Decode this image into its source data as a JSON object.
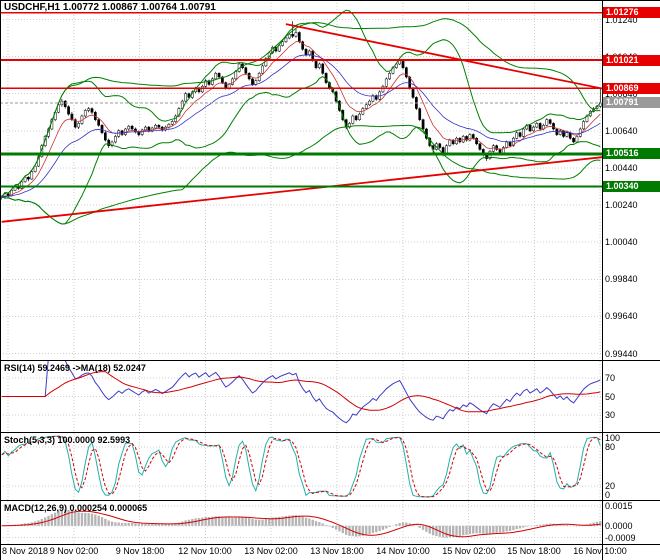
{
  "title": "USDCHF,H1 1.00772 1.00867 1.00764 1.00791",
  "colors": {
    "background": "#ffffff",
    "grid": "#cfcfcf",
    "candle": "#000000",
    "band_green": "#008000",
    "level_red": "#e60000",
    "level_green": "#007a00",
    "current_price_badge": "#9a9a9a",
    "rsi_line": "#3c3cc8",
    "rsi_signal": "#d40000",
    "stoch_main": "#20b2aa",
    "stoch_signal": "#d40000",
    "macd_hist": "#b4b4b4",
    "macd_signal": "#d40000",
    "ma_fast": "#c83232",
    "ma_slow": "#3232c8"
  },
  "chart_data": {
    "type": "candlestick",
    "instrument": "USDCHF",
    "timeframe": "H1",
    "ohlc_header": {
      "open": "1.00772",
      "high": "1.00867",
      "low": "1.00764",
      "close": "1.00791"
    },
    "x_tick_labels": [
      "8 Nov 2018",
      "9 Nov 02:00",
      "9 Nov 18:00",
      "12 Nov 10:00",
      "13 Nov 02:00",
      "13 Nov 18:00",
      "14 Nov 10:00",
      "15 Nov 02:00",
      "15 Nov 18:00",
      "16 Nov 10:00"
    ],
    "y_axis": {
      "tick_labels": [
        "1.01240",
        "1.01040",
        "1.00840",
        "1.00640",
        "1.00440",
        "1.00240",
        "1.00040",
        "0.99840",
        "0.99640",
        "0.99440"
      ],
      "plot_max": 1.01345,
      "plot_min": 0.99405
    },
    "price_base": 0.99,
    "point": 1e-05,
    "candles": [
      [
        1280,
        1292,
        1270,
        1285
      ],
      [
        1285,
        1308,
        1280,
        1300
      ],
      [
        1300,
        1306,
        1282,
        1290
      ],
      [
        1290,
        1328,
        1286,
        1320
      ],
      [
        1320,
        1348,
        1315,
        1340
      ],
      [
        1340,
        1352,
        1322,
        1330
      ],
      [
        1330,
        1372,
        1326,
        1365
      ],
      [
        1365,
        1398,
        1360,
        1390
      ],
      [
        1390,
        1396,
        1368,
        1380
      ],
      [
        1380,
        1428,
        1376,
        1420
      ],
      [
        1420,
        1458,
        1415,
        1450
      ],
      [
        1450,
        1510,
        1445,
        1500
      ],
      [
        1500,
        1568,
        1495,
        1560
      ],
      [
        1560,
        1618,
        1552,
        1610
      ],
      [
        1610,
        1658,
        1600,
        1650
      ],
      [
        1650,
        1708,
        1645,
        1700
      ],
      [
        1700,
        1748,
        1692,
        1740
      ],
      [
        1740,
        1788,
        1735,
        1780
      ],
      [
        1780,
        1812,
        1770,
        1800
      ],
      [
        1800,
        1806,
        1760,
        1770
      ],
      [
        1770,
        1778,
        1722,
        1730
      ],
      [
        1730,
        1742,
        1692,
        1700
      ],
      [
        1700,
        1708,
        1652,
        1660
      ],
      [
        1660,
        1688,
        1650,
        1680
      ],
      [
        1680,
        1728,
        1672,
        1720
      ],
      [
        1720,
        1758,
        1712,
        1750
      ],
      [
        1750,
        1768,
        1740,
        1760
      ],
      [
        1760,
        1766,
        1730,
        1740
      ],
      [
        1740,
        1748,
        1692,
        1700
      ],
      [
        1700,
        1706,
        1662,
        1670
      ],
      [
        1670,
        1676,
        1622,
        1630
      ],
      [
        1630,
        1638,
        1582,
        1590
      ],
      [
        1590,
        1598,
        1548,
        1560
      ],
      [
        1560,
        1588,
        1552,
        1580
      ],
      [
        1580,
        1618,
        1572,
        1610
      ],
      [
        1610,
        1648,
        1602,
        1640
      ],
      [
        1640,
        1646,
        1612,
        1620
      ],
      [
        1620,
        1656,
        1612,
        1650
      ],
      [
        1650,
        1672,
        1642,
        1665
      ],
      [
        1665,
        1672,
        1640,
        1650
      ],
      [
        1650,
        1658,
        1626,
        1635
      ],
      [
        1635,
        1642,
        1610,
        1620
      ],
      [
        1620,
        1652,
        1612,
        1645
      ],
      [
        1645,
        1668,
        1638,
        1660
      ],
      [
        1660,
        1666,
        1632,
        1640
      ],
      [
        1640,
        1662,
        1632,
        1655
      ],
      [
        1655,
        1678,
        1648,
        1670
      ],
      [
        1670,
        1676,
        1650,
        1660
      ],
      [
        1660,
        1666,
        1636,
        1645
      ],
      [
        1645,
        1668,
        1638,
        1660
      ],
      [
        1660,
        1682,
        1652,
        1675
      ],
      [
        1675,
        1698,
        1668,
        1690
      ],
      [
        1690,
        1728,
        1684,
        1720
      ],
      [
        1720,
        1768,
        1714,
        1760
      ],
      [
        1760,
        1808,
        1754,
        1800
      ],
      [
        1800,
        1848,
        1794,
        1840
      ],
      [
        1840,
        1846,
        1812,
        1820
      ],
      [
        1820,
        1858,
        1812,
        1850
      ],
      [
        1850,
        1878,
        1842,
        1870
      ],
      [
        1870,
        1876,
        1842,
        1850
      ],
      [
        1850,
        1888,
        1844,
        1880
      ],
      [
        1880,
        1918,
        1874,
        1910
      ],
      [
        1910,
        1916,
        1882,
        1890
      ],
      [
        1890,
        1928,
        1884,
        1920
      ],
      [
        1920,
        1958,
        1914,
        1950
      ],
      [
        1950,
        1956,
        1922,
        1930
      ],
      [
        1930,
        1936,
        1892,
        1900
      ],
      [
        1900,
        1906,
        1862,
        1870
      ],
      [
        1870,
        1898,
        1862,
        1890
      ],
      [
        1890,
        1928,
        1884,
        1920
      ],
      [
        1920,
        1968,
        1914,
        1960
      ],
      [
        1960,
        2008,
        1954,
        2000
      ],
      [
        2000,
        2006,
        1972,
        1980
      ],
      [
        1980,
        1986,
        1942,
        1950
      ],
      [
        1950,
        1956,
        1912,
        1920
      ],
      [
        1920,
        1926,
        1882,
        1890
      ],
      [
        1890,
        1918,
        1882,
        1910
      ],
      [
        1910,
        1958,
        1904,
        1950
      ],
      [
        1950,
        1998,
        1944,
        1990
      ],
      [
        1990,
        2038,
        1984,
        2030
      ],
      [
        2030,
        2068,
        2024,
        2060
      ],
      [
        2060,
        2098,
        2054,
        2090
      ],
      [
        2090,
        2096,
        2062,
        2070
      ],
      [
        2070,
        2108,
        2064,
        2100
      ],
      [
        2100,
        2128,
        2094,
        2120
      ],
      [
        2120,
        2148,
        2114,
        2140
      ],
      [
        2140,
        2168,
        2134,
        2160
      ],
      [
        2160,
        2230,
        2140,
        2150
      ],
      [
        2150,
        2188,
        2142,
        2170
      ],
      [
        2170,
        2176,
        2112,
        2120
      ],
      [
        2120,
        2126,
        2072,
        2080
      ],
      [
        2080,
        2086,
        2042,
        2050
      ],
      [
        2050,
        2078,
        2042,
        2070
      ],
      [
        2070,
        2076,
        2012,
        2020
      ],
      [
        2020,
        2026,
        1972,
        1980
      ],
      [
        1980,
        2008,
        1972,
        2000
      ],
      [
        2000,
        2006,
        1942,
        1950
      ],
      [
        1950,
        1956,
        1892,
        1900
      ],
      [
        1900,
        1906,
        1862,
        1870
      ],
      [
        1870,
        1876,
        1842,
        1850
      ],
      [
        1850,
        1856,
        1792,
        1800
      ],
      [
        1800,
        1806,
        1742,
        1750
      ],
      [
        1750,
        1756,
        1692,
        1700
      ],
      [
        1700,
        1706,
        1648,
        1660
      ],
      [
        1660,
        1688,
        1652,
        1680
      ],
      [
        1680,
        1728,
        1674,
        1720
      ],
      [
        1720,
        1726,
        1692,
        1700
      ],
      [
        1700,
        1738,
        1694,
        1730
      ],
      [
        1730,
        1768,
        1724,
        1760
      ],
      [
        1760,
        1788,
        1754,
        1780
      ],
      [
        1780,
        1808,
        1774,
        1800
      ],
      [
        1800,
        1838,
        1794,
        1830
      ],
      [
        1830,
        1836,
        1802,
        1810
      ],
      [
        1810,
        1858,
        1804,
        1850
      ],
      [
        1850,
        1888,
        1844,
        1880
      ],
      [
        1880,
        1928,
        1874,
        1920
      ],
      [
        1920,
        1958,
        1914,
        1950
      ],
      [
        1950,
        1988,
        1944,
        1980
      ],
      [
        1980,
        2008,
        1974,
        2000
      ],
      [
        2000,
        2028,
        1994,
        2020
      ],
      [
        2020,
        2026,
        1972,
        1980
      ],
      [
        1980,
        1986,
        1922,
        1930
      ],
      [
        1930,
        1936,
        1862,
        1870
      ],
      [
        1870,
        1876,
        1812,
        1820
      ],
      [
        1820,
        1826,
        1752,
        1760
      ],
      [
        1760,
        1766,
        1692,
        1700
      ],
      [
        1700,
        1706,
        1642,
        1650
      ],
      [
        1650,
        1656,
        1592,
        1600
      ],
      [
        1600,
        1606,
        1552,
        1560
      ],
      [
        1560,
        1566,
        1522,
        1540
      ],
      [
        1540,
        1578,
        1534,
        1570
      ],
      [
        1570,
        1576,
        1542,
        1550
      ],
      [
        1550,
        1556,
        1502,
        1520
      ],
      [
        1520,
        1568,
        1514,
        1560
      ],
      [
        1560,
        1598,
        1554,
        1590
      ],
      [
        1590,
        1596,
        1562,
        1570
      ],
      [
        1570,
        1608,
        1564,
        1600
      ],
      [
        1600,
        1606,
        1572,
        1580
      ],
      [
        1580,
        1618,
        1574,
        1610
      ],
      [
        1610,
        1616,
        1582,
        1590
      ],
      [
        1590,
        1628,
        1584,
        1620
      ],
      [
        1620,
        1626,
        1592,
        1600
      ],
      [
        1600,
        1606,
        1562,
        1570
      ],
      [
        1570,
        1576,
        1532,
        1540
      ],
      [
        1540,
        1546,
        1502,
        1510
      ],
      [
        1510,
        1516,
        1478,
        1490
      ],
      [
        1490,
        1538,
        1484,
        1530
      ],
      [
        1530,
        1568,
        1524,
        1560
      ],
      [
        1560,
        1566,
        1532,
        1540
      ],
      [
        1540,
        1546,
        1512,
        1520
      ],
      [
        1520,
        1558,
        1514,
        1550
      ],
      [
        1550,
        1588,
        1544,
        1580
      ],
      [
        1580,
        1586,
        1552,
        1560
      ],
      [
        1560,
        1608,
        1554,
        1600
      ],
      [
        1600,
        1638,
        1594,
        1630
      ],
      [
        1630,
        1636,
        1602,
        1610
      ],
      [
        1610,
        1658,
        1604,
        1650
      ],
      [
        1650,
        1678,
        1644,
        1670
      ],
      [
        1670,
        1676,
        1632,
        1640
      ],
      [
        1640,
        1668,
        1634,
        1660
      ],
      [
        1660,
        1688,
        1654,
        1680
      ],
      [
        1680,
        1686,
        1642,
        1650
      ],
      [
        1650,
        1678,
        1644,
        1670
      ],
      [
        1670,
        1708,
        1664,
        1700
      ],
      [
        1700,
        1706,
        1672,
        1680
      ],
      [
        1680,
        1686,
        1642,
        1650
      ],
      [
        1650,
        1656,
        1612,
        1620
      ],
      [
        1620,
        1648,
        1614,
        1640
      ],
      [
        1640,
        1646,
        1602,
        1610
      ],
      [
        1610,
        1638,
        1604,
        1630
      ],
      [
        1630,
        1636,
        1592,
        1600
      ],
      [
        1600,
        1606,
        1572,
        1580
      ],
      [
        1580,
        1618,
        1574,
        1610
      ],
      [
        1610,
        1658,
        1604,
        1650
      ],
      [
        1650,
        1698,
        1644,
        1690
      ],
      [
        1690,
        1728,
        1684,
        1720
      ],
      [
        1720,
        1753,
        1714,
        1745
      ],
      [
        1745,
        1768,
        1739,
        1760
      ],
      [
        1760,
        1779,
        1754,
        1772
      ],
      [
        1772,
        1867,
        1764,
        1791
      ]
    ],
    "levels": [
      {
        "price": 1.01276,
        "label": "1.01276",
        "kind": "resistance"
      },
      {
        "price": 1.01021,
        "label": "1.01021",
        "kind": "resistance"
      },
      {
        "price": 1.00869,
        "label": "1.00869",
        "kind": "resistance"
      },
      {
        "price": 1.00791,
        "label": "1.00791",
        "kind": "current"
      },
      {
        "price": 1.00516,
        "label": "1.00516",
        "kind": "support",
        "thick": true
      },
      {
        "price": 1.0034,
        "label": "1.00340",
        "kind": "support"
      }
    ],
    "trendlines": [
      {
        "bar1": 85,
        "price1": 1.01215,
        "bar2": 183,
        "price2": 1.00855
      },
      {
        "bar1": 0,
        "price1": 1.0015,
        "bar2": 183,
        "price2": 1.00505
      }
    ],
    "bollinger": {
      "inner_period": 20,
      "outer_period": 55,
      "deviation": 2
    },
    "indicators": {
      "rsi": {
        "label": "RSI(14) 59.2469 ->MA(18) 52.0247",
        "period": 14,
        "signal_period": 18,
        "levels": [
          70,
          50,
          30
        ],
        "range": [
          12,
          88
        ]
      },
      "stoch": {
        "label": "Stoch(5,3,3) 100.0000 92.5993",
        "k": 5,
        "slow": 3,
        "d": 3,
        "levels": [
          80,
          20
        ],
        "axis_labels": [
          100,
          80,
          20,
          0
        ],
        "range": [
          -2,
          102
        ]
      },
      "macd": {
        "label": "MACD(12,26,9) 0.000254 0.000065",
        "fast": 12,
        "slow": 26,
        "signal": 9,
        "axis_labels": [
          "0.0015",
          "0.0000",
          "-0.0009"
        ],
        "axis_values": [
          0.0015,
          0,
          -0.0009
        ],
        "range": [
          -0.0014,
          0.0019
        ]
      }
    }
  }
}
